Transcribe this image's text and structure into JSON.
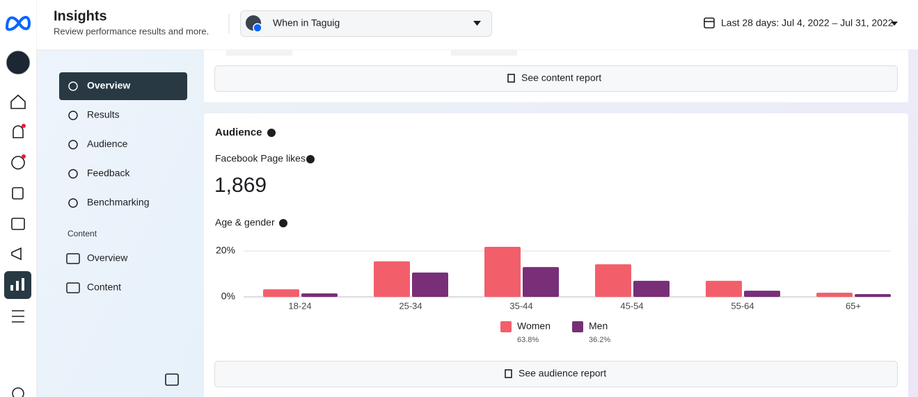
{
  "header": {
    "title": "Insights",
    "subtitle": "Review performance results and more.",
    "page_selector": "When in Taguig",
    "date_range": "Last 28 days: Jul 4, 2022 – Jul 31, 2022"
  },
  "nav": {
    "items": [
      "Overview",
      "Results",
      "Audience",
      "Feedback",
      "Benchmarking"
    ],
    "section": "Content",
    "content_items": [
      "Overview",
      "Content"
    ]
  },
  "content_report_button": "See content report",
  "audience": {
    "title": "Audience",
    "likes_label": "Facebook Page likes",
    "likes_value": "1,869",
    "chart_title": "Age & gender",
    "report_button": "See audience report"
  },
  "chart_data": {
    "type": "bar",
    "categories": [
      "18-24",
      "25-34",
      "35-44",
      "45-54",
      "55-64",
      "65+"
    ],
    "series": [
      {
        "name": "Women",
        "color": "#f25f6b",
        "share": "63.8%",
        "values": [
          3.3,
          15.5,
          21.8,
          14.2,
          7.0,
          1.8
        ]
      },
      {
        "name": "Men",
        "color": "#782f78",
        "share": "36.2%",
        "values": [
          1.5,
          10.6,
          13.0,
          7.0,
          2.7,
          1.2
        ]
      }
    ],
    "ylim": [
      0,
      22
    ],
    "yticks": [
      {
        "value": 0,
        "label": "0%"
      },
      {
        "value": 20,
        "label": "20%"
      }
    ],
    "grid": true
  }
}
